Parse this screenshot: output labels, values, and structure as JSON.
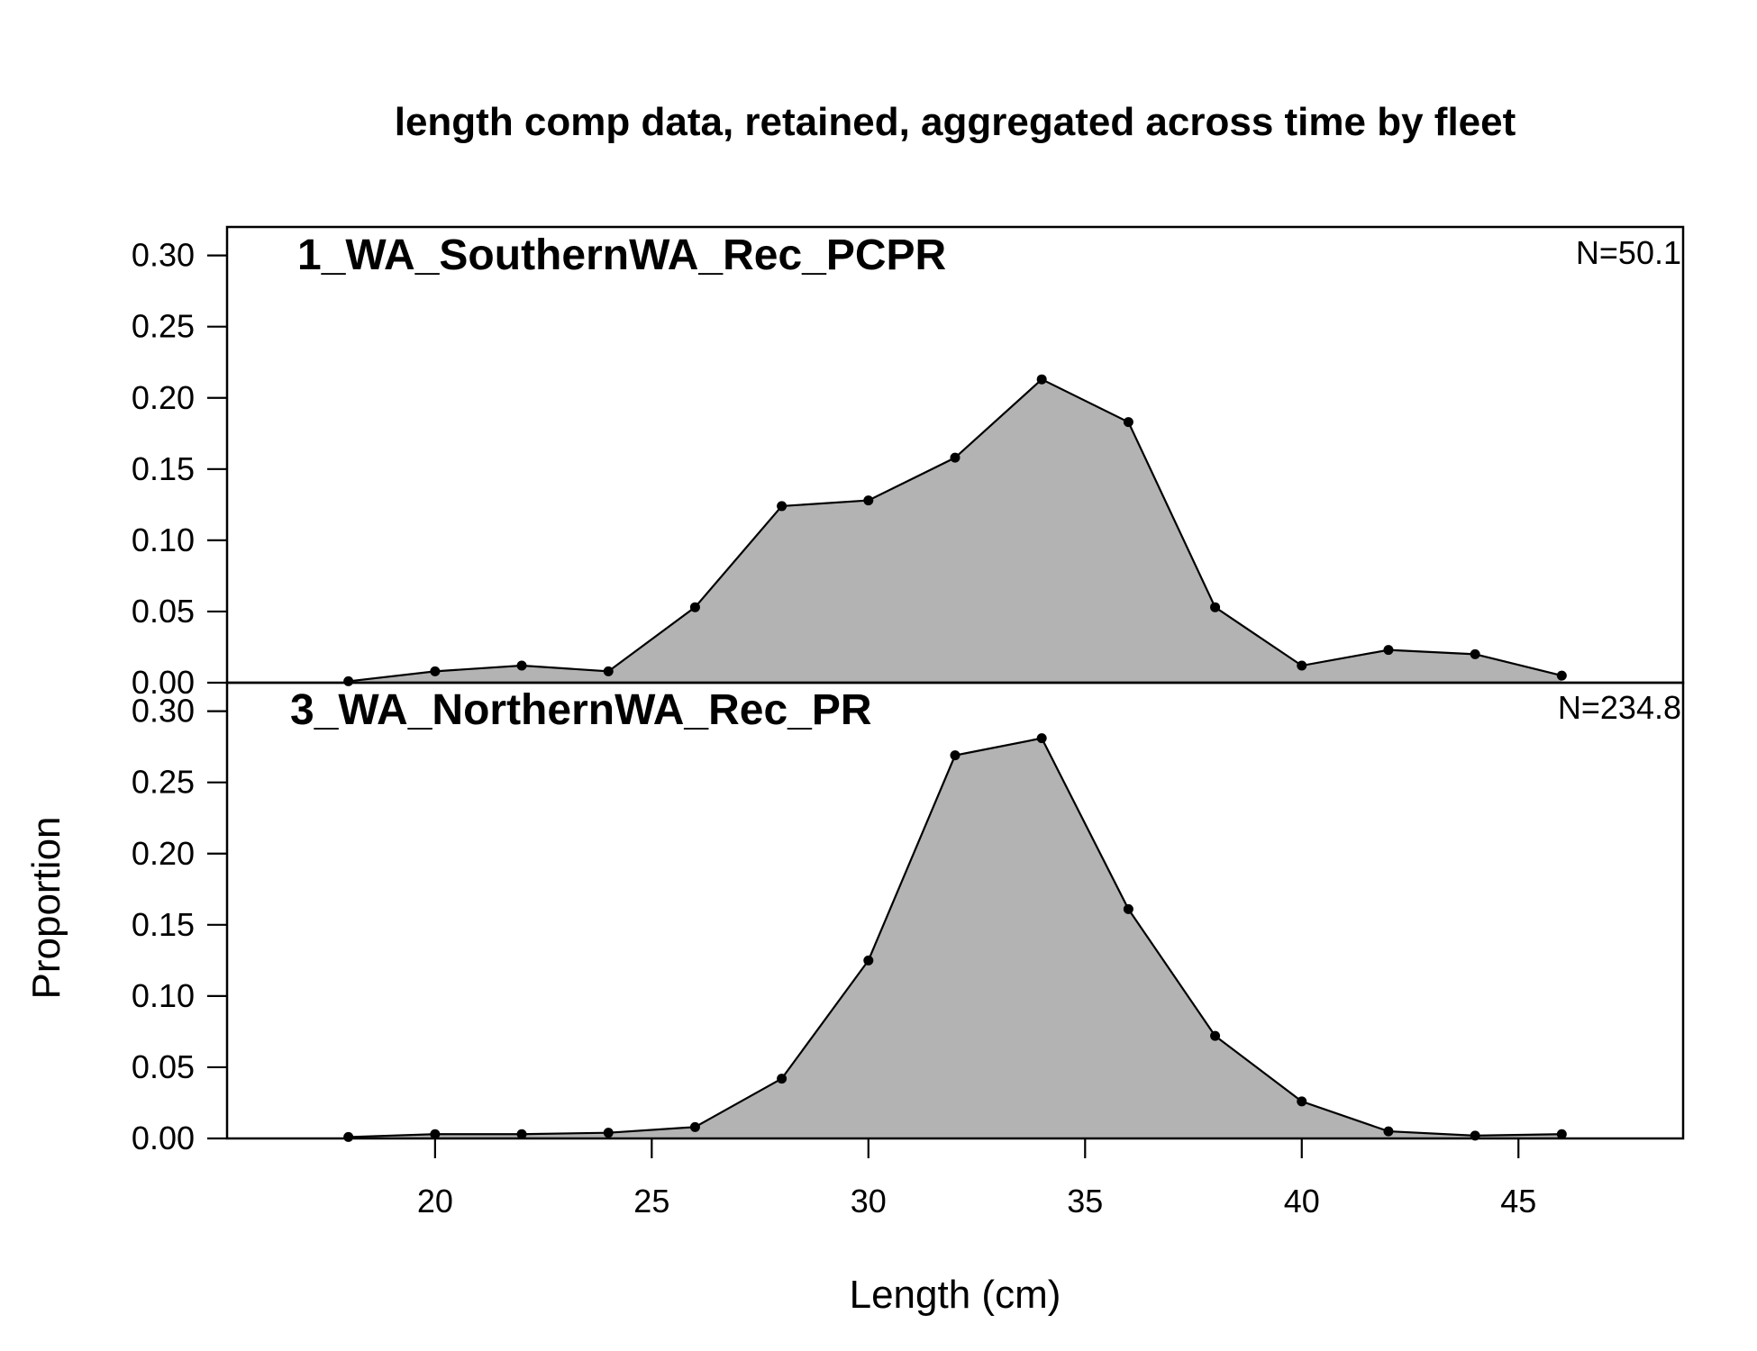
{
  "chart_data": {
    "type": "area",
    "title": "length comp data, retained, aggregated across time by fleet",
    "xlabel": "Length (cm)",
    "ylabel": "Proportion",
    "xlim": [
      15.2,
      48.8
    ],
    "ylim": [
      0,
      0.32
    ],
    "x_ticks": [
      20,
      25,
      30,
      35,
      40,
      45
    ],
    "y_ticks": [
      0,
      0.05,
      0.1,
      0.15,
      0.2,
      0.25,
      0.3
    ],
    "y_tick_labels": [
      "0.00",
      "0.05",
      "0.10",
      "0.15",
      "0.20",
      "0.25",
      "0.30"
    ],
    "fill_color": "#b3b3b3",
    "line_color": "#000000",
    "x": [
      18,
      20,
      22,
      24,
      26,
      28,
      30,
      32,
      34,
      36,
      38,
      40,
      42,
      44,
      46
    ],
    "panels": [
      {
        "name": "1_WA_SouthernWA_Rec_PCPR",
        "n_label": "N=50.1",
        "values": [
          0.001,
          0.008,
          0.012,
          0.008,
          0.053,
          0.124,
          0.128,
          0.158,
          0.213,
          0.183,
          0.053,
          0.012,
          0.023,
          0.02,
          0.005
        ]
      },
      {
        "name": "3_WA_NorthernWA_Rec_PR",
        "n_label": "N=234.8",
        "values": [
          0.001,
          0.003,
          0.003,
          0.004,
          0.008,
          0.042,
          0.125,
          0.269,
          0.281,
          0.161,
          0.072,
          0.026,
          0.005,
          0.002,
          0.003
        ]
      }
    ]
  }
}
